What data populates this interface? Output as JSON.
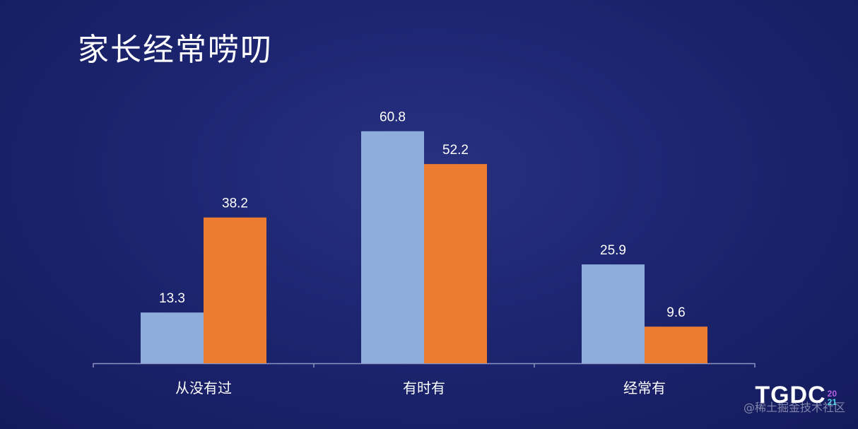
{
  "title": "家长经常唠叨",
  "logo": {
    "main": "TGDC",
    "year_top": "20",
    "year_bottom": "21"
  },
  "watermark": "@稀土掘金技术社区",
  "colors": {
    "series1": "#8eacdc",
    "series2": "#ec7c30",
    "axis": "#8d95c2",
    "text": "#ffffff"
  },
  "chart_data": {
    "type": "bar",
    "categories": [
      "从没有过",
      "有时有",
      "经常有"
    ],
    "series": [
      {
        "values": [
          13.3,
          60.8,
          25.9
        ]
      },
      {
        "values": [
          38.2,
          52.2,
          9.6
        ]
      }
    ],
    "ylim": [
      0,
      75
    ],
    "grid": false,
    "legend": "none"
  }
}
